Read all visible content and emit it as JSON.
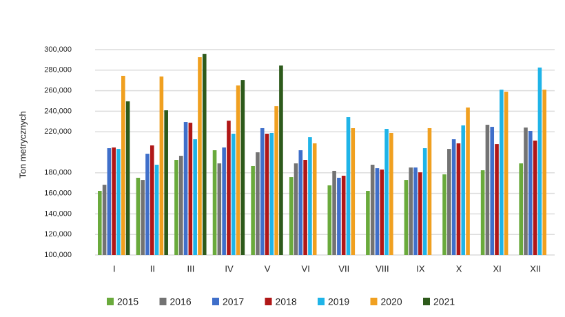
{
  "chart_data": {
    "type": "bar",
    "y_label": "Ton metrycznych",
    "categories": [
      "I",
      "II",
      "III",
      "IV",
      "V",
      "VI",
      "VII",
      "VIII",
      "IX",
      "X",
      "XI",
      "XII"
    ],
    "series": [
      {
        "name": "2015",
        "color": "#6aaa3c",
        "values": [
          162400,
          175200,
          192600,
          202000,
          186600,
          175800,
          167800,
          162400,
          173100,
          178500,
          182500,
          189200
        ]
      },
      {
        "name": "2016",
        "color": "#737373",
        "values": [
          168400,
          173100,
          196600,
          189200,
          200000,
          189200,
          181900,
          187900,
          185200,
          203300,
          226800,
          224100
        ]
      },
      {
        "name": "2017",
        "color": "#3f6fca",
        "values": [
          204000,
          198600,
          229500,
          204700,
          223500,
          202000,
          175200,
          184500,
          185200,
          212700,
          224800,
          220800
        ]
      },
      {
        "name": "2018",
        "color": "#b01717",
        "values": [
          204700,
          206700,
          228800,
          230800,
          218100,
          192600,
          177200,
          183200,
          180500,
          208700,
          208000,
          211400
        ]
      },
      {
        "name": "2019",
        "color": "#1fb4e8",
        "values": [
          203300,
          187900,
          212700,
          218100,
          218800,
          214700,
          234200,
          222800,
          204000,
          226200,
          261000,
          282500
        ]
      },
      {
        "name": "2020",
        "color": "#f0a020",
        "values": [
          274500,
          273800,
          292600,
          265100,
          244900,
          208700,
          223500,
          218800,
          223500,
          243600,
          259000,
          261000
        ]
      },
      {
        "name": "2021",
        "color": "#2d5a1b",
        "values": [
          249600,
          240900,
          295900,
          270400,
          284500,
          null,
          null,
          null,
          null,
          null,
          null,
          null
        ]
      }
    ],
    "ylim": [
      100000,
      300000
    ],
    "yticks": [
      {
        "value": 100000,
        "label": "100,000"
      },
      {
        "value": 120000,
        "label": "120,000"
      },
      {
        "value": 140000,
        "label": "140,000"
      },
      {
        "value": 160000,
        "label": "160,000"
      },
      {
        "value": 180000,
        "label": "180,000"
      },
      {
        "value": 220000,
        "label": "220,000"
      },
      {
        "value": 240000,
        "label": "240,000"
      },
      {
        "value": 260000,
        "label": "260,000"
      },
      {
        "value": 280000,
        "label": "280,000"
      },
      {
        "value": 300000,
        "label": "300,000"
      }
    ],
    "grid": true,
    "legend": "bottom"
  }
}
